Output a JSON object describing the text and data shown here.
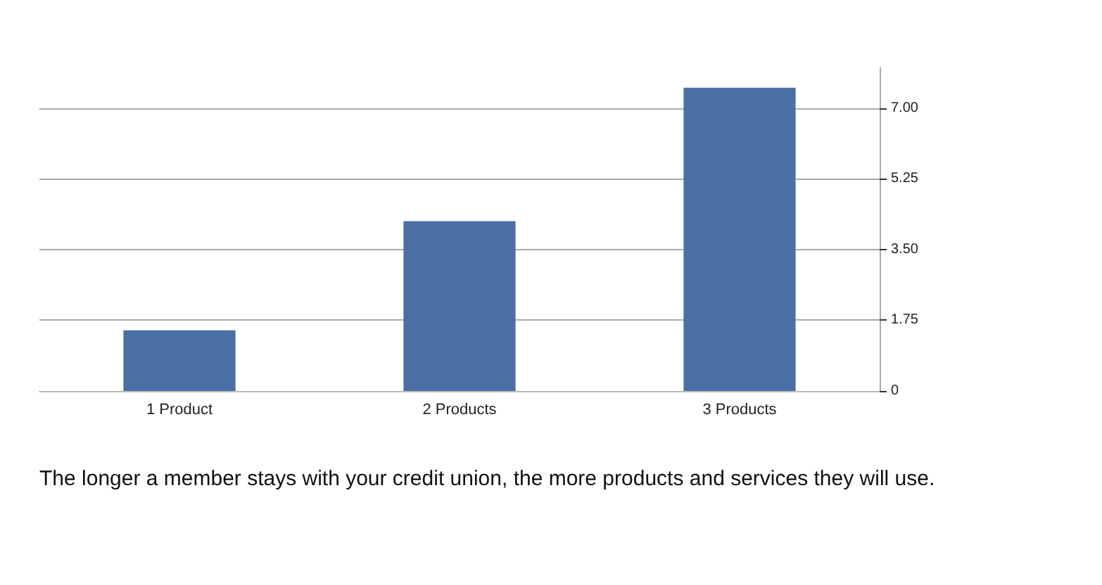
{
  "chart_data": {
    "type": "bar",
    "categories": [
      "1 Product",
      "2 Products",
      "3 Products"
    ],
    "values": [
      1.5,
      4.2,
      7.5
    ],
    "color": "#4a6fa5",
    "ylim": [
      0,
      8
    ],
    "yticks": [
      0,
      {
        "value": 1.75,
        "label": "1.75"
      },
      {
        "value": 3.5,
        "label": "3.50"
      },
      {
        "value": 5.25,
        "label": "5.25"
      },
      {
        "value": 7,
        "label": "7.00"
      }
    ],
    "grid": "y",
    "annotations": [
      "The longer a member stays with your credit union, the more products and services they will use."
    ]
  }
}
